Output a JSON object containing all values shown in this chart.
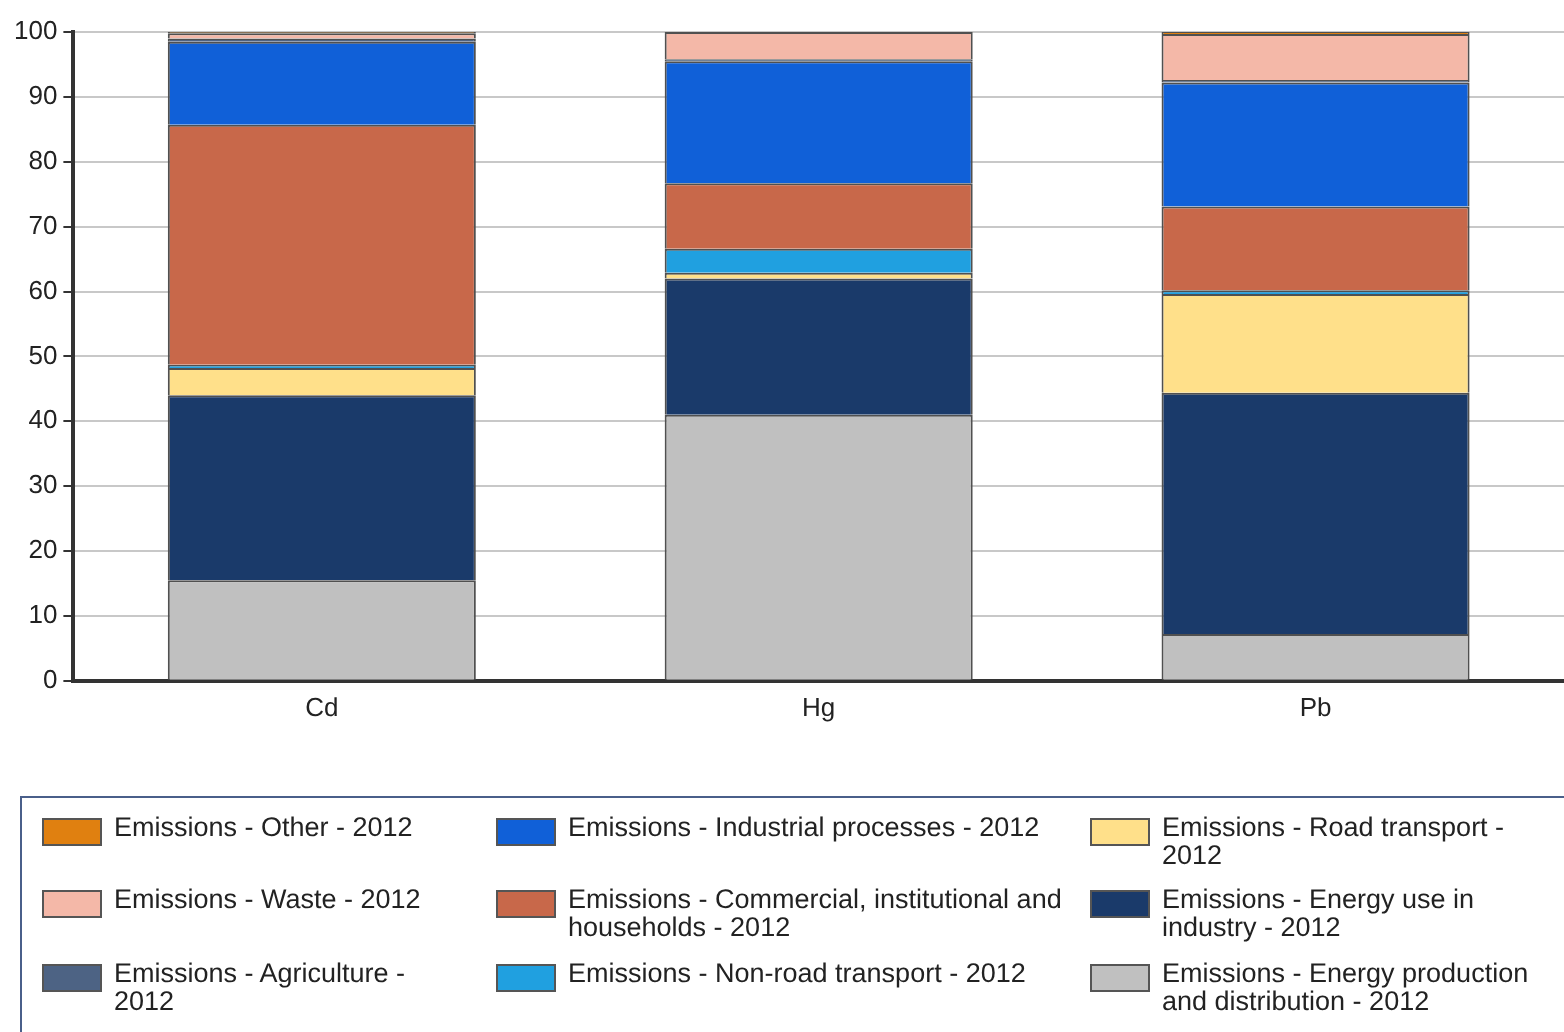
{
  "chart_data": {
    "type": "bar",
    "stacked": true,
    "categories": [
      "Cd",
      "Hg",
      "Pb"
    ],
    "ylim": [
      0,
      100
    ],
    "yticks": [
      0,
      10,
      20,
      30,
      40,
      50,
      60,
      70,
      80,
      90,
      100
    ],
    "grid": "y",
    "legend": "bottom",
    "series": [
      {
        "name": "Emissions - Energy production and distribution - 2012",
        "color": "#c0c0c0",
        "values": [
          15.5,
          41,
          7.2
        ]
      },
      {
        "name": "Emissions - Energy use in industry - 2012",
        "color": "#1a3a6a",
        "values": [
          28.5,
          21,
          37.2
        ]
      },
      {
        "name": "Emissions - Road transport - 2012",
        "color": "#ffe08a",
        "values": [
          4.2,
          0.9,
          15.2
        ]
      },
      {
        "name": "Emissions - Non-road transport - 2012",
        "color": "#20a0e0",
        "values": [
          0.5,
          3.7,
          0.6
        ]
      },
      {
        "name": "Emissions - Commercial, institutional and households - 2012",
        "color": "#c8684a",
        "values": [
          37,
          10.1,
          12.9
        ]
      },
      {
        "name": "Emissions - Industrial processes - 2012",
        "color": "#1060d8",
        "values": [
          12.8,
          18.8,
          19.1
        ]
      },
      {
        "name": "Emissions - Agriculture - 2012",
        "color": "#4d6384",
        "values": [
          0.5,
          0.3,
          0.4
        ]
      },
      {
        "name": "Emissions - Waste - 2012",
        "color": "#f4b8a8",
        "values": [
          0.8,
          4.2,
          7.1
        ]
      },
      {
        "name": "Emissions - Other - 2012",
        "color": "#e08010",
        "values": [
          0.2,
          0,
          0.3
        ]
      }
    ]
  }
}
